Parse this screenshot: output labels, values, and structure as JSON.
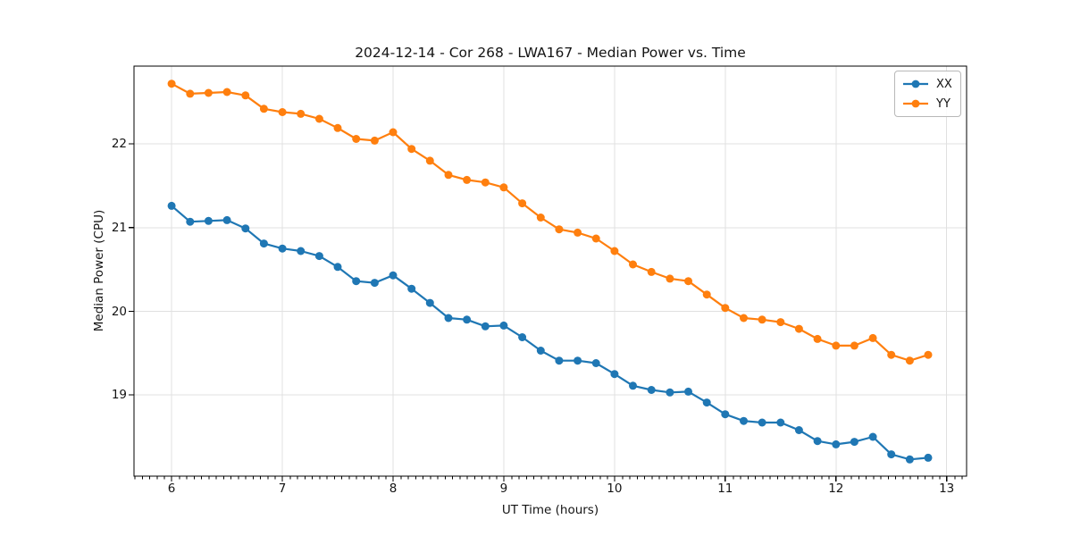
{
  "chart_data": {
    "type": "line",
    "title": "2024-12-14 - Cor 268 - LWA167 - Median Power vs. Time",
    "xlabel": "UT Time (hours)",
    "ylabel": "Median Power (CPU)",
    "xlim": [
      5.66,
      13.18
    ],
    "ylim": [
      18.03,
      22.93
    ],
    "xticks": [
      6,
      7,
      8,
      9,
      10,
      11,
      12,
      13
    ],
    "yticks": [
      19,
      20,
      21,
      22
    ],
    "minor_xtick_step": 0.0667,
    "grid": true,
    "grid_color": "#e0e0e0",
    "legend_position": "upper right",
    "x": [
      6.0,
      6.1667,
      6.3333,
      6.5,
      6.6667,
      6.8333,
      7.0,
      7.1667,
      7.3333,
      7.5,
      7.6667,
      7.8333,
      8.0,
      8.1667,
      8.3333,
      8.5,
      8.6667,
      8.8333,
      9.0,
      9.1667,
      9.3333,
      9.5,
      9.6667,
      9.8333,
      10.0,
      10.1667,
      10.3333,
      10.5,
      10.6667,
      10.8333,
      11.0,
      11.1667,
      11.3333,
      11.5,
      11.6667,
      11.8333,
      12.0,
      12.1667,
      12.3333,
      12.5,
      12.6667,
      12.8333
    ],
    "series": [
      {
        "name": "XX",
        "color": "#1f77b4",
        "marker": "circle",
        "values": [
          21.26,
          21.07,
          21.08,
          21.09,
          20.99,
          20.81,
          20.75,
          20.72,
          20.66,
          20.53,
          20.36,
          20.34,
          20.43,
          20.27,
          20.1,
          19.92,
          19.9,
          19.82,
          19.83,
          19.69,
          19.53,
          19.41,
          19.41,
          19.38,
          19.25,
          19.11,
          19.06,
          19.03,
          19.04,
          18.91,
          18.77,
          18.69,
          18.67,
          18.67,
          18.58,
          18.45,
          18.41,
          18.44,
          18.5,
          18.29,
          18.23,
          18.25
        ]
      },
      {
        "name": "YY",
        "color": "#ff7f0e",
        "marker": "circle",
        "values": [
          22.72,
          22.6,
          22.61,
          22.62,
          22.58,
          22.42,
          22.38,
          22.36,
          22.3,
          22.19,
          22.06,
          22.04,
          22.14,
          21.94,
          21.8,
          21.63,
          21.57,
          21.54,
          21.48,
          21.29,
          21.12,
          20.98,
          20.94,
          20.87,
          20.72,
          20.56,
          20.47,
          20.39,
          20.36,
          20.2,
          20.04,
          19.92,
          19.9,
          19.87,
          19.79,
          19.67,
          19.59,
          19.59,
          19.68,
          19.48,
          19.41,
          19.48
        ]
      }
    ]
  }
}
